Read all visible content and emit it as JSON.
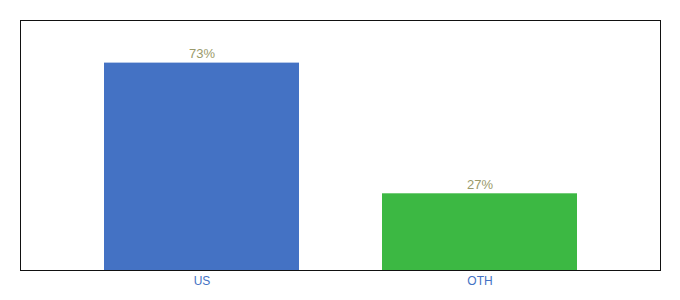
{
  "chart_data": {
    "type": "bar",
    "categories": [
      "US",
      "OTH"
    ],
    "values": [
      73,
      27
    ],
    "colors": [
      "#4472c4",
      "#3cb843"
    ],
    "ylim": [
      0,
      88
    ],
    "tick_labels": "x",
    "data_labels": true,
    "value_labels": [
      "73%",
      "27%"
    ]
  }
}
